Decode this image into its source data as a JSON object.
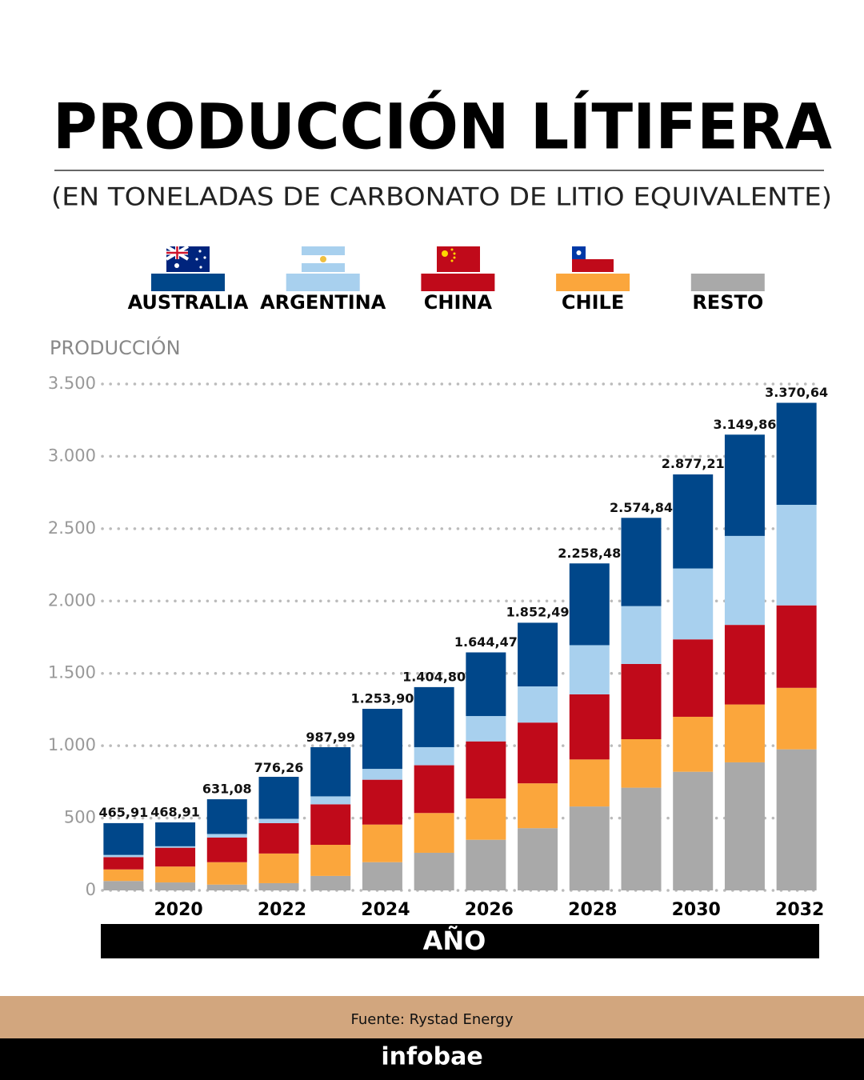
{
  "title": "PRODUCCIÓN LÍTIFERA",
  "subtitle": "(EN TONELADAS DE CARBONATO DE LITIO EQUIVALENTE)",
  "source": "Fuente: Rystad Energy",
  "brand": "infobae",
  "chart_data": {
    "type": "stacked-bar",
    "y_label": "PRODUCCIÓN",
    "x_label": "AÑO",
    "categories": [
      null,
      "2020",
      null,
      "2022",
      null,
      "2024",
      null,
      "2026",
      null,
      "2028",
      null,
      "2030",
      null,
      "2032"
    ],
    "series": [
      {
        "name": "AUSTRALIA",
        "color": "#00478a",
        "values": [
          220,
          165,
          240,
          290,
          340,
          415,
          415,
          440,
          440,
          565,
          610,
          650,
          700,
          705
        ]
      },
      {
        "name": "ARGENTINA",
        "color": "#a8d0ee",
        "values": [
          15,
          10,
          25,
          30,
          55,
          75,
          125,
          175,
          250,
          340,
          400,
          490,
          615,
          695
        ]
      },
      {
        "name": "CHINA",
        "color": "#c00a1a",
        "values": [
          85,
          130,
          170,
          210,
          280,
          310,
          330,
          395,
          420,
          450,
          520,
          535,
          550,
          570
        ]
      },
      {
        "name": "CHILE",
        "color": "#fba63c",
        "values": [
          80,
          110,
          155,
          205,
          215,
          260,
          275,
          285,
          310,
          325,
          335,
          380,
          400,
          425
        ]
      },
      {
        "name": "RESTO",
        "color": "#a9a9a9",
        "values": [
          65,
          55,
          40,
          50,
          100,
          195,
          260,
          350,
          430,
          580,
          710,
          820,
          885,
          975
        ]
      }
    ],
    "totals": [
      465.91,
      468.91,
      631.08,
      776.26,
      987.99,
      1253.9,
      1404.8,
      1644.47,
      1852.49,
      2258.48,
      2574.84,
      2877.21,
      3149.86,
      3370.64
    ],
    "total_labels": [
      "465,91",
      "468,91",
      "631,08",
      "776,26",
      "987,99",
      "1.253,90",
      "1.404,80",
      "1.644,47",
      "1.852,49",
      "2.258,48",
      "2.574,84",
      "2.877,21",
      "3.149,86",
      "3.370,64"
    ],
    "ylim": [
      0,
      3500
    ],
    "yticks": [
      0,
      500,
      {
        "value": 1000,
        "label": "1.000"
      },
      {
        "value": 1500,
        "label": "1.500"
      },
      {
        "value": 2000,
        "label": "2.000"
      },
      {
        "value": 2500,
        "label": "2.500"
      },
      {
        "value": 3000,
        "label": "3.000"
      },
      {
        "value": 3500,
        "label": "3.500"
      }
    ],
    "grid": true
  }
}
